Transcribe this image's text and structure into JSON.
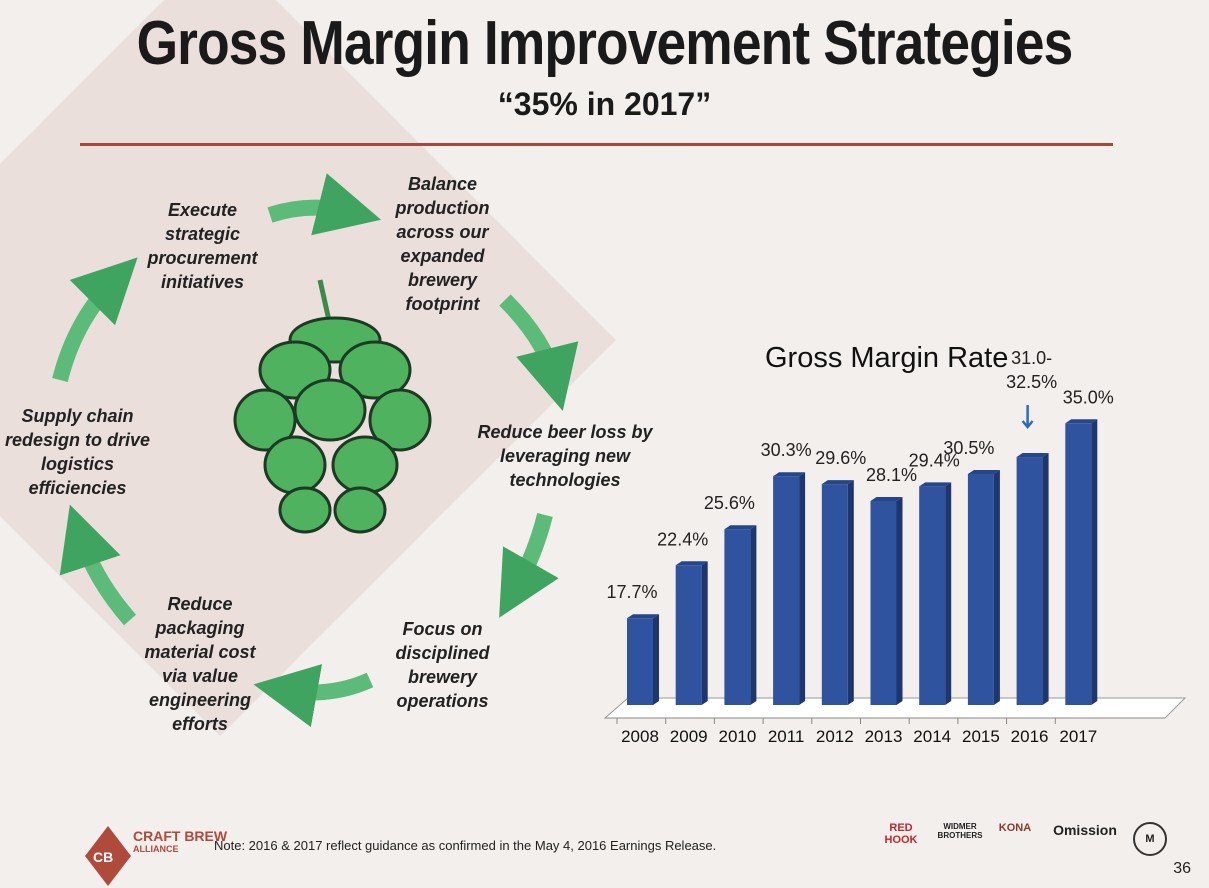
{
  "header": {
    "title": "Gross Margin Improvement Strategies",
    "subtitle": "“35% in 2017”"
  },
  "cycle": {
    "steps": [
      "Execute strategic procurement initiatives",
      "Balance production across our expanded brewery footprint",
      "Reduce beer loss by leveraging new technologies",
      "Focus on disciplined brewery operations",
      "Reduce packaging material cost via value engineering efforts",
      "Supply chain redesign to drive logistics efficiencies"
    ]
  },
  "chart_data": {
    "type": "bar",
    "title": "Gross Margin Rate",
    "categories": [
      "2008",
      "2009",
      "2010",
      "2011",
      "2012",
      "2013",
      "2014",
      "2015",
      "2016",
      "2017"
    ],
    "values": [
      17.7,
      22.4,
      25.6,
      30.3,
      29.6,
      28.1,
      29.4,
      30.5,
      32.0,
      35.0
    ],
    "labels": [
      "17.7%",
      "22.4%",
      "25.6%",
      "30.3%",
      "29.6%",
      "28.1%",
      "29.4%",
      "30.5%",
      "31.0-\n32.5%",
      "35.0%"
    ],
    "ylim": [
      10,
      36
    ],
    "bar_color": "#2f539f",
    "grid": false
  },
  "footer": {
    "note": "Note: 2016 & 2017 reflect guidance as confirmed in the May 4, 2016 Earnings Release.",
    "page": "36",
    "logo_lines": [
      "CRAFT BREW",
      "ALLIANCE"
    ],
    "logo_mark": "CB",
    "brands": [
      "RED HOOK",
      "WIDMER BROTHERS",
      "KONA",
      "Omission",
      "M"
    ]
  }
}
